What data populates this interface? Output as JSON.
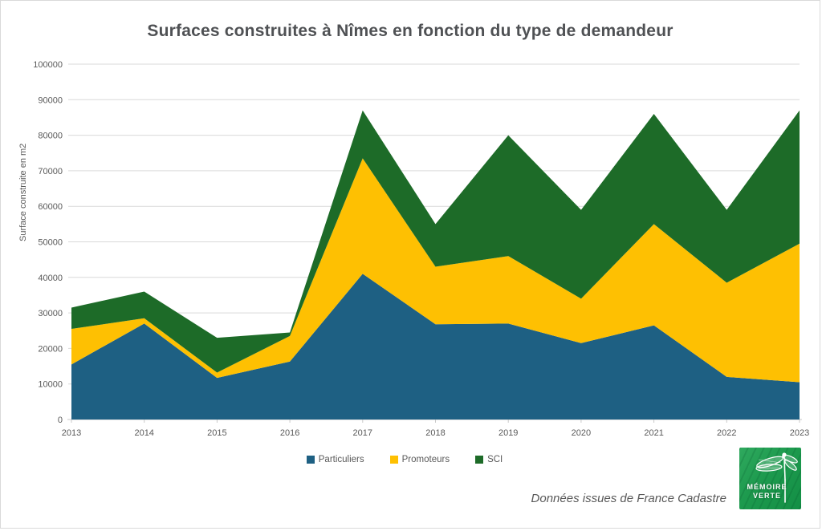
{
  "title": "Surfaces construites à Nîmes en fonction du type de demandeur",
  "source_note": "Données issues de France Cadastre",
  "logo": {
    "line1": "MÉMOIRE",
    "line2": "VERTE"
  },
  "colors": {
    "grid": "#d9d9d9",
    "axis": "#c9c9c9",
    "tick_text": "#595959",
    "title_text": "#4f5154"
  },
  "chart_data": {
    "type": "area",
    "stacked": true,
    "title": "Surfaces construites à Nîmes en fonction du type de demandeur",
    "xlabel": "",
    "ylabel": "Surface construite en m2",
    "x": [
      2013,
      2014,
      2015,
      2016,
      2017,
      2018,
      2019,
      2020,
      2021,
      2022,
      2023
    ],
    "series": [
      {
        "name": "Particuliers",
        "color": "#1e6083",
        "values": [
          15500,
          27000,
          11700,
          16300,
          41000,
          26800,
          27000,
          21500,
          26500,
          12000,
          10500
        ]
      },
      {
        "name": "Promoteurs",
        "color": "#fec002",
        "values": [
          10000,
          1500,
          1500,
          7200,
          32500,
          16200,
          19000,
          12500,
          28500,
          26500,
          39000
        ]
      },
      {
        "name": "SCI",
        "color": "#1d6b28",
        "values": [
          6000,
          7500,
          9800,
          1000,
          13500,
          12000,
          34000,
          25000,
          31000,
          20500,
          37500
        ]
      }
    ],
    "ylim": [
      0,
      100000
    ],
    "ytick_step": 10000,
    "grid": true,
    "legend_position": "bottom"
  }
}
